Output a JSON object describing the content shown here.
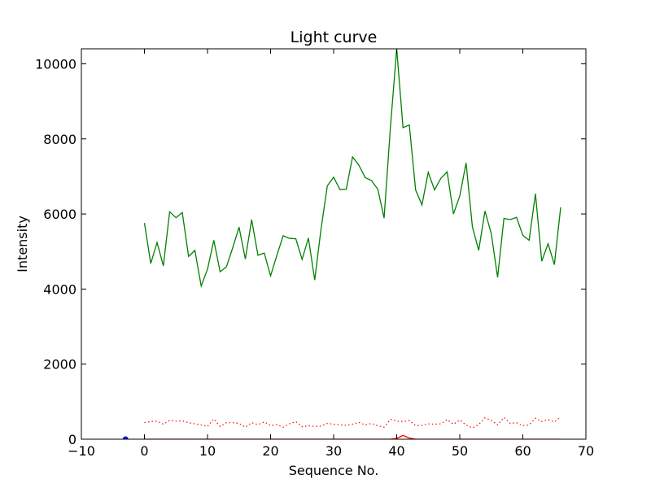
{
  "chart_data": {
    "type": "line",
    "title": "Light curve",
    "xlabel": "Sequence No.",
    "ylabel": "Intensity",
    "xlim": [
      -10,
      70
    ],
    "ylim": [
      0,
      10400
    ],
    "xticks": [
      -10,
      0,
      10,
      20,
      30,
      40,
      50,
      60,
      70
    ],
    "yticks": [
      0,
      2000,
      4000,
      6000,
      8000,
      10000
    ],
    "grid": false,
    "legend": "none",
    "x": [
      0,
      1,
      2,
      3,
      4,
      5,
      6,
      7,
      8,
      9,
      10,
      11,
      12,
      13,
      14,
      15,
      16,
      17,
      18,
      19,
      20,
      21,
      22,
      23,
      24,
      25,
      26,
      27,
      28,
      29,
      30,
      31,
      32,
      33,
      34,
      35,
      36,
      37,
      38,
      39,
      40,
      41,
      42,
      43,
      44,
      45,
      46,
      47,
      48,
      49,
      50,
      51,
      52,
      53,
      54,
      55,
      56,
      57,
      58,
      59,
      60,
      61,
      62,
      63,
      64,
      65,
      66
    ],
    "series": [
      {
        "color": "#008000",
        "style": "solid",
        "values": [
          5760,
          4680,
          5240,
          4620,
          6060,
          5900,
          6040,
          4870,
          5030,
          4080,
          4530,
          5300,
          4460,
          4590,
          5100,
          5650,
          4800,
          5850,
          4900,
          4960,
          4350,
          4900,
          5420,
          5350,
          5340,
          4790,
          5360,
          4240,
          5600,
          6750,
          6980,
          6650,
          6660,
          7520,
          7300,
          6970,
          6890,
          6660,
          5890,
          8300,
          10400,
          8300,
          8370,
          6640,
          6240,
          7110,
          6640,
          6950,
          7120,
          6000,
          6480,
          7360,
          5660,
          5030,
          6080,
          5470,
          4310,
          5880,
          5850,
          5910,
          5430,
          5300,
          6540,
          4740,
          5210,
          4650,
          6180
        ]
      },
      {
        "color": "#ff0000",
        "style": "dotted",
        "values": [
          440,
          470,
          480,
          400,
          500,
          480,
          490,
          440,
          410,
          380,
          340,
          540,
          340,
          440,
          440,
          420,
          320,
          440,
          390,
          460,
          360,
          390,
          320,
          410,
          470,
          330,
          360,
          340,
          350,
          420,
          400,
          380,
          370,
          400,
          450,
          380,
          420,
          360,
          320,
          530,
          480,
          470,
          500,
          360,
          370,
          410,
          400,
          410,
          520,
          400,
          510,
          380,
          300,
          390,
          570,
          500,
          380,
          580,
          420,
          440,
          360,
          380,
          560,
          470,
          520,
          460,
          600
        ]
      },
      {
        "color": "#ff0000",
        "style": "solid",
        "values": [
          0,
          0,
          0,
          0,
          0,
          0,
          0,
          0,
          0,
          0,
          0,
          0,
          0,
          0,
          0,
          0,
          0,
          0,
          0,
          0,
          0,
          0,
          0,
          0,
          0,
          0,
          0,
          0,
          0,
          0,
          0,
          0,
          0,
          0,
          0,
          0,
          0,
          0,
          0,
          0,
          20,
          100,
          30,
          0,
          0,
          0,
          0,
          0,
          0,
          0,
          0,
          0,
          0,
          0,
          0,
          0,
          0,
          0,
          0,
          0,
          0,
          0,
          0,
          0,
          0,
          0,
          0
        ]
      }
    ],
    "markers": [
      {
        "color": "#0000ff",
        "x": -3,
        "y": 0
      }
    ]
  }
}
